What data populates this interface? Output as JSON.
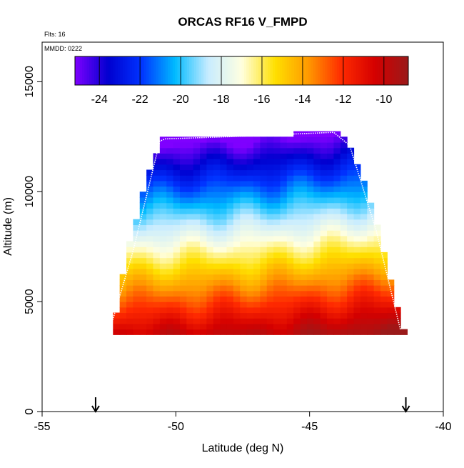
{
  "chart_data": {
    "type": "heatmap",
    "title": "ORCAS RF16 V_FMPD",
    "annotations": {
      "flights": "Flts: 16",
      "date": "MMDD: 0222"
    },
    "xlabel": "Latitude (deg N)",
    "ylabel": "Altitude (m)",
    "xlim": [
      -55,
      -40
    ],
    "ylim": [
      0,
      16800
    ],
    "x_ticks": [
      -55,
      -50,
      -45,
      -40
    ],
    "x_tick_labels": [
      "-55",
      "-50",
      "-45",
      "-40"
    ],
    "y_ticks": [
      0,
      5000,
      10000,
      15000
    ],
    "y_tick_labels": [
      "0",
      "5000",
      "10000",
      "15000"
    ],
    "colorbar": {
      "range": [
        -25.2,
        -8.8
      ],
      "ticks": [
        -24,
        -22,
        -20,
        -18,
        -16,
        -14,
        -12,
        -10
      ],
      "tick_labels": [
        "-24",
        "-22",
        "-20",
        "-18",
        "-16",
        "-14",
        "-12",
        "-10"
      ],
      "colors": [
        "#7f00ff",
        "#0000d0",
        "#0033ff",
        "#00bbff",
        "#c8ecff",
        "#ffffe0",
        "#ffe000",
        "#ff9900",
        "#ff2a00",
        "#d40000",
        "#9a1a1a"
      ]
    },
    "grid": {
      "lat_min": -52.6,
      "lat_max": -41.2,
      "lat_step": 0.25,
      "alt_min": 3500,
      "alt_max": 12750,
      "alt_step": 250,
      "value_model": {
        "surface_value": -8.8,
        "lapse_per_km": 1.75,
        "ref_alt_m": 3500,
        "lat_gradient": [
          [
            -52.5,
            1.4
          ],
          [
            -47,
            0.9
          ],
          [
            -42,
            0.0
          ]
        ],
        "min_value": -25.2
      }
    },
    "coverage_envelope": {
      "left": [
        [
          3500,
          -52.5
        ],
        [
          4000,
          -52.3
        ],
        [
          6000,
          -52.0
        ],
        [
          7500,
          -51.8
        ],
        [
          9000,
          -51.4
        ],
        [
          10500,
          -51.1
        ],
        [
          11500,
          -50.8
        ],
        [
          12400,
          -50.6
        ]
      ],
      "right": [
        [
          3500,
          -41.3
        ],
        [
          4000,
          -41.6
        ],
        [
          6000,
          -42.0
        ],
        [
          7500,
          -42.3
        ],
        [
          9000,
          -42.6
        ],
        [
          10500,
          -43.0
        ],
        [
          11500,
          -43.3
        ],
        [
          12400,
          -43.6
        ],
        [
          12700,
          -44.1
        ]
      ],
      "top": [
        [
          -50.6,
          12400
        ],
        [
          -48.0,
          12500
        ],
        [
          -44.1,
          12700
        ]
      ]
    },
    "flight_track": {
      "lat": [
        -52.5,
        -51.6,
        -50.6,
        -50.4,
        -48.0,
        -44.1,
        -43.5,
        -42.5,
        -41.6
      ],
      "alt": [
        3600,
        7300,
        12300,
        12400,
        12500,
        12700,
        12100,
        8200,
        3700
      ]
    },
    "arrow_markers": {
      "lat": [
        -53.0,
        -41.4
      ]
    }
  }
}
